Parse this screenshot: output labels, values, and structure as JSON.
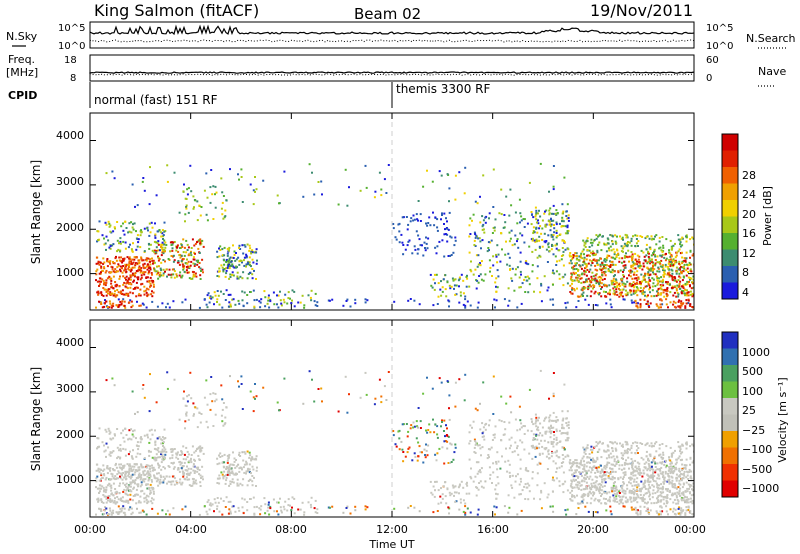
{
  "header": {
    "station": "King Salmon (fitACF)",
    "beam": "Beam 02",
    "date": "19/Nov/2011"
  },
  "summary": {
    "nsky_label": "N.Sky",
    "nsearch_label": "N.Search",
    "nsky_ticks": [
      "10^5",
      "10^0"
    ],
    "nsky_right_ticks": [
      "10^5",
      "10^0"
    ],
    "freq_label_1": "Freq.",
    "freq_label_2": "[MHz]",
    "freq_ticks": [
      "18",
      "8"
    ],
    "nave_label": "Nave",
    "nave_ticks": [
      "60",
      "0"
    ],
    "cpid_label": "CPID",
    "cpid_segments": [
      {
        "label": "normal (fast) 151 RF",
        "start_hour": 0
      },
      {
        "label": "themis 3300 RF",
        "start_hour": 12
      }
    ]
  },
  "chart_data": [
    {
      "type": "heatmap",
      "name": "power-panel",
      "ylabel": "Slant Range [km]",
      "xlabel": "Time UT",
      "xlim_hours": [
        0,
        24
      ],
      "x_ticks": [
        "00:00",
        "04:00",
        "08:00",
        "12:00",
        "16:00",
        "20:00",
        "00:00"
      ],
      "ylim_km": [
        180,
        4620
      ],
      "y_ticks": [
        1000,
        2000,
        3000,
        4000
      ],
      "colorbar_label": "Power [dB]",
      "colorbar_ticks": [
        "4",
        "8",
        "12",
        "16",
        "20",
        "24",
        "28"
      ],
      "colorbar_colors": [
        "#1a1adc",
        "#2a5fb0",
        "#3c8c70",
        "#55b030",
        "#a8c818",
        "#f0d000",
        "#f0a000",
        "#f06000",
        "#e02000",
        "#d00000"
      ]
    },
    {
      "type": "heatmap",
      "name": "velocity-panel",
      "ylabel": "Slant Range [km]",
      "xlabel": "Time UT",
      "xlim_hours": [
        0,
        24
      ],
      "x_ticks": [
        "00:00",
        "04:00",
        "08:00",
        "12:00",
        "16:00",
        "20:00",
        "00:00"
      ],
      "ylim_km": [
        180,
        4620
      ],
      "y_ticks": [
        1000,
        2000,
        3000,
        4000
      ],
      "colorbar_label": "Velocity [m s⁻¹]",
      "colorbar_ticks": [
        "1000",
        "500",
        "100",
        "25",
        "−25",
        "−100",
        "−500",
        "−1000"
      ],
      "colorbar_colors": [
        "#2030c0",
        "#3070b0",
        "#4aa060",
        "#6cc040",
        "#c8c8c0",
        "#c0c0b8",
        "#f0a000",
        "#f07000",
        "#f03000",
        "#e00000"
      ]
    }
  ],
  "axis": {
    "time_label": "Time UT"
  }
}
